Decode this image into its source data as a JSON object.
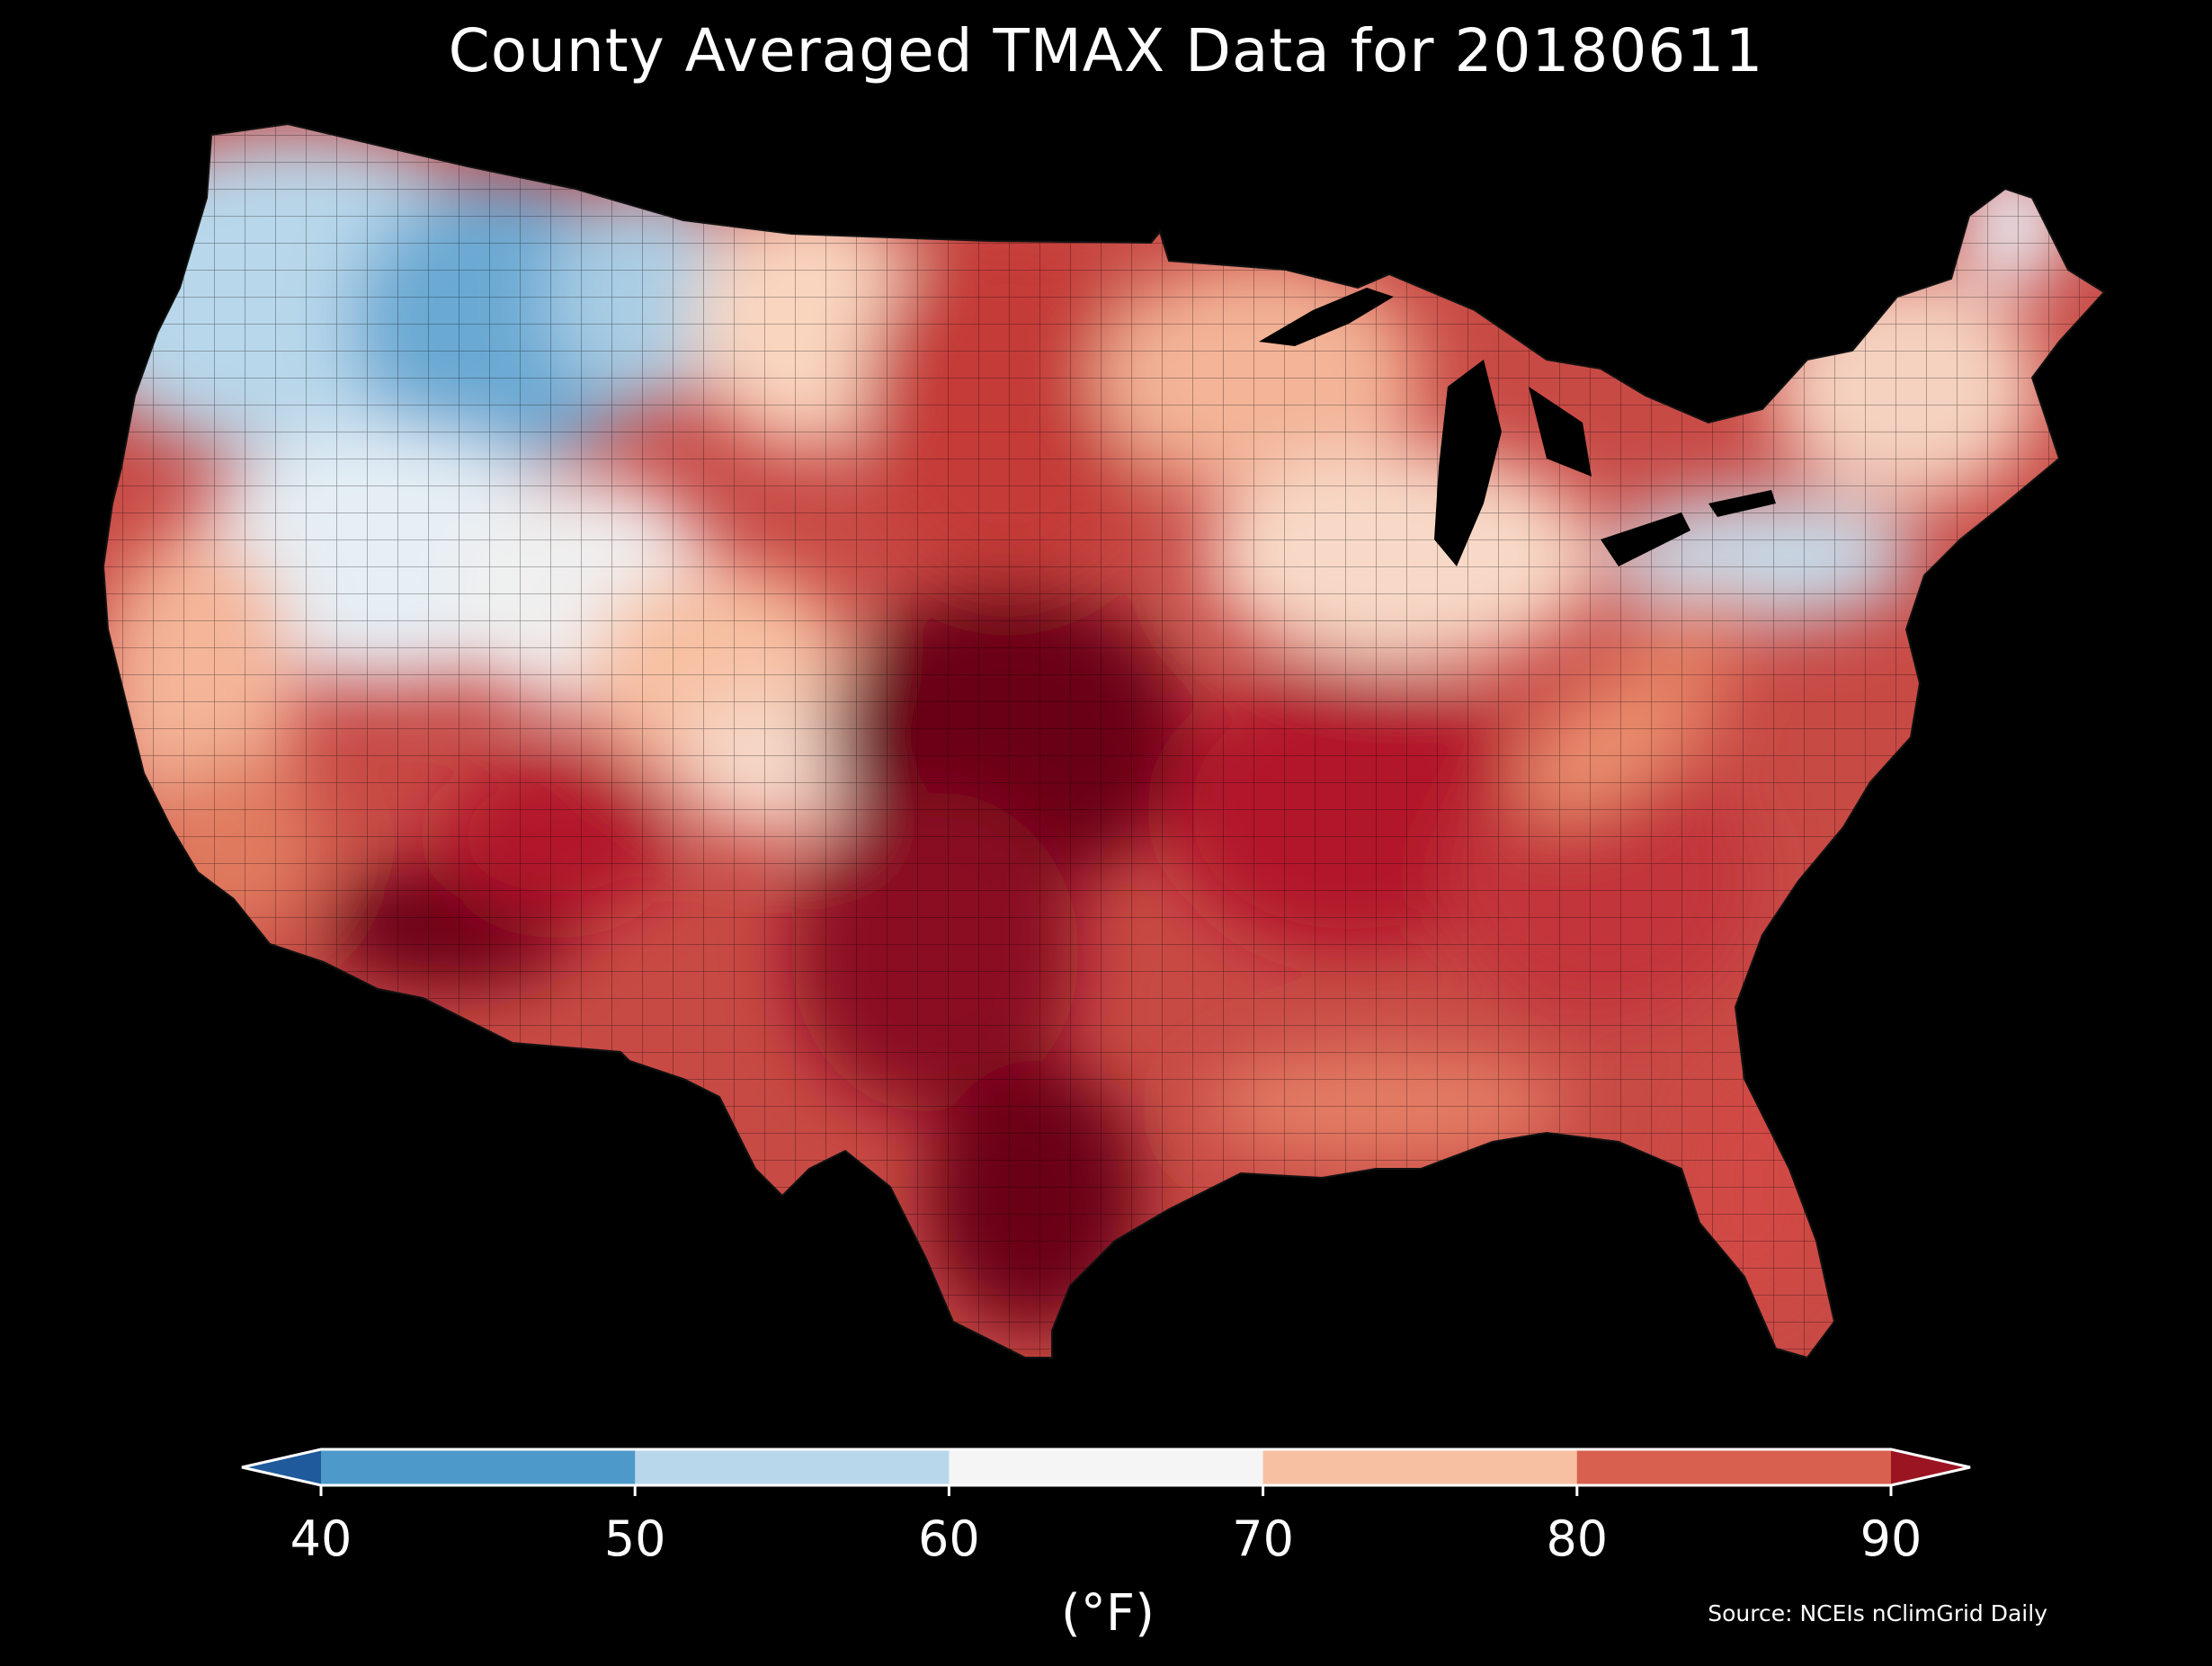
{
  "title": "County Averaged TMAX Data for 20180611",
  "source": "Source: NCEIs nClimGrid Daily",
  "colorbar": {
    "unit_label": "(°F)",
    "ticks": [
      "40",
      "50",
      "60",
      "70",
      "80",
      "90"
    ],
    "bins": [
      {
        "range": "<40",
        "color": "#1f5a9c"
      },
      {
        "range": "40-50",
        "color": "#4d99c9"
      },
      {
        "range": "50-60",
        "color": "#b8d7ea"
      },
      {
        "range": "60-70",
        "color": "#f5f5f5"
      },
      {
        "range": "70-80",
        "color": "#f7c0a2"
      },
      {
        "range": "80-90",
        "color": "#d8604e"
      },
      {
        "range": ">90",
        "color": "#9b1421"
      }
    ]
  },
  "map": {
    "region": "Contiguous United States (counties)",
    "regional_pattern": [
      {
        "region": "Pacific Northwest / N. Rockies",
        "color": "#6aa9d3"
      },
      {
        "region": "Great Basin / N. Plains",
        "color": "#d8e8f2"
      },
      {
        "region": "California / Central Rockies",
        "color": "#f7c0a2"
      },
      {
        "region": "Upper Midwest / Northeast",
        "color": "#f6d1bf"
      },
      {
        "region": "Great Lakes / PA-NY",
        "color": "#dbe9f3"
      },
      {
        "region": "Southern Plains / Texas / Desert SW",
        "color": "#6b0016"
      },
      {
        "region": "Southeast / Gulf Coast",
        "color": "#c2343a"
      },
      {
        "region": "Appalachians",
        "color": "#eb9070"
      }
    ]
  }
}
